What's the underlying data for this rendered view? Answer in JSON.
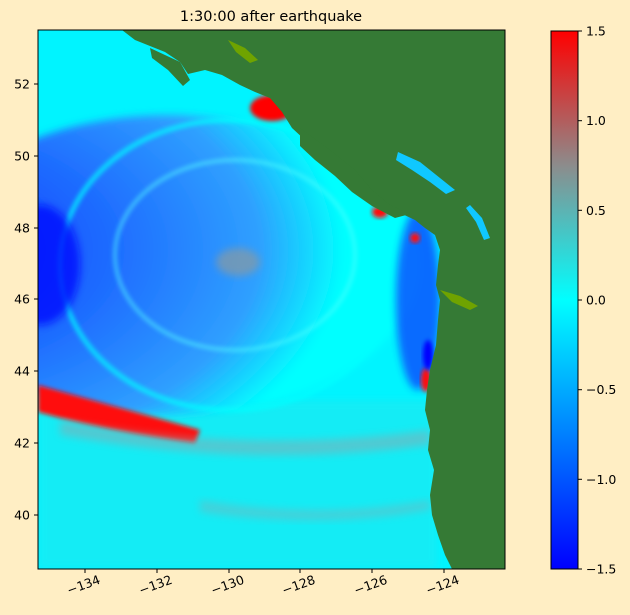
{
  "title": "1:30:00 after earthquake",
  "colors": {
    "background": "#ffeec4",
    "land": "#357a35",
    "land_shallow": "#6fa300",
    "ocean_zero": "#00ffff",
    "positive": "#ff0000",
    "negative": "#0000ff"
  },
  "chart_data": {
    "type": "heatmap",
    "title": "1:30:00 after earthquake",
    "xlabel": "",
    "ylabel": "",
    "xlim": [
      -135.1,
      -122.0
    ],
    "ylim": [
      38.5,
      53.5
    ],
    "x_ticks": [
      -134,
      -132,
      -130,
      -128,
      -126,
      -124
    ],
    "y_ticks": [
      40,
      42,
      44,
      46,
      48,
      50,
      52
    ],
    "x_tick_labels": [
      "−134",
      "−132",
      "−130",
      "−128",
      "−126",
      "−124"
    ],
    "y_tick_labels": [
      "40",
      "42",
      "44",
      "46",
      "48",
      "50",
      "52"
    ],
    "colorbar": {
      "range": [
        -1.5,
        1.5
      ],
      "ticks": [
        -1.5,
        -1.0,
        -0.5,
        0.0,
        0.5,
        1.0,
        1.5
      ],
      "tick_labels": [
        "−1.5",
        "−1.0",
        "−0.5",
        "0.0",
        "0.5",
        "1.0",
        "1.5"
      ],
      "colors": [
        {
          "value": -1.5,
          "color": "#0000ff"
        },
        {
          "value": -0.75,
          "color": "#0080ff"
        },
        {
          "value": 0.0,
          "color": "#00ffff"
        },
        {
          "value": 0.75,
          "color": "#8c8c8c"
        },
        {
          "value": 1.5,
          "color": "#ff0000"
        }
      ]
    },
    "grid": false
  }
}
